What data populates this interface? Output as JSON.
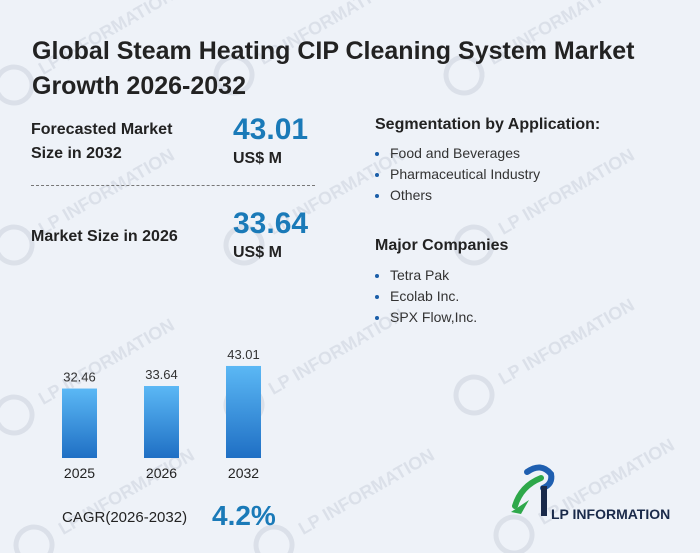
{
  "title": "Global Steam Heating CIP Cleaning System Market Growth 2026-2032",
  "forecast": {
    "label": "Forecasted Market Size in 2032",
    "value": "43.01",
    "unit": "US$ M"
  },
  "current": {
    "label": "Market Size in 2026",
    "value": "33.64",
    "unit": "US$ M"
  },
  "segmentation": {
    "title": "Segmentation by Application:",
    "items": [
      "Food and Beverages",
      "Pharmaceutical Industry",
      "Others"
    ]
  },
  "companies": {
    "title": "Major Companies",
    "items": [
      "Tetra Pak",
      "Ecolab Inc.",
      "SPX Flow,Inc."
    ]
  },
  "cagr": {
    "label": "CAGR(2026-2032)",
    "value": "4.2%"
  },
  "logo": {
    "text": "LP INFORMATION",
    "watermark": "LP INFORMATION"
  },
  "colors": {
    "accent": "#1a7ab8",
    "bar_top": "#5bb8f5",
    "bar_bottom": "#1f6fc4"
  },
  "chart_data": {
    "type": "bar",
    "categories": [
      "2025",
      "2026",
      "2032"
    ],
    "values": [
      32.46,
      33.64,
      43.01
    ],
    "data_labels": [
      "32.46",
      "33.64",
      "43.01"
    ],
    "title": "",
    "xlabel": "",
    "ylabel": "",
    "grid": false
  }
}
